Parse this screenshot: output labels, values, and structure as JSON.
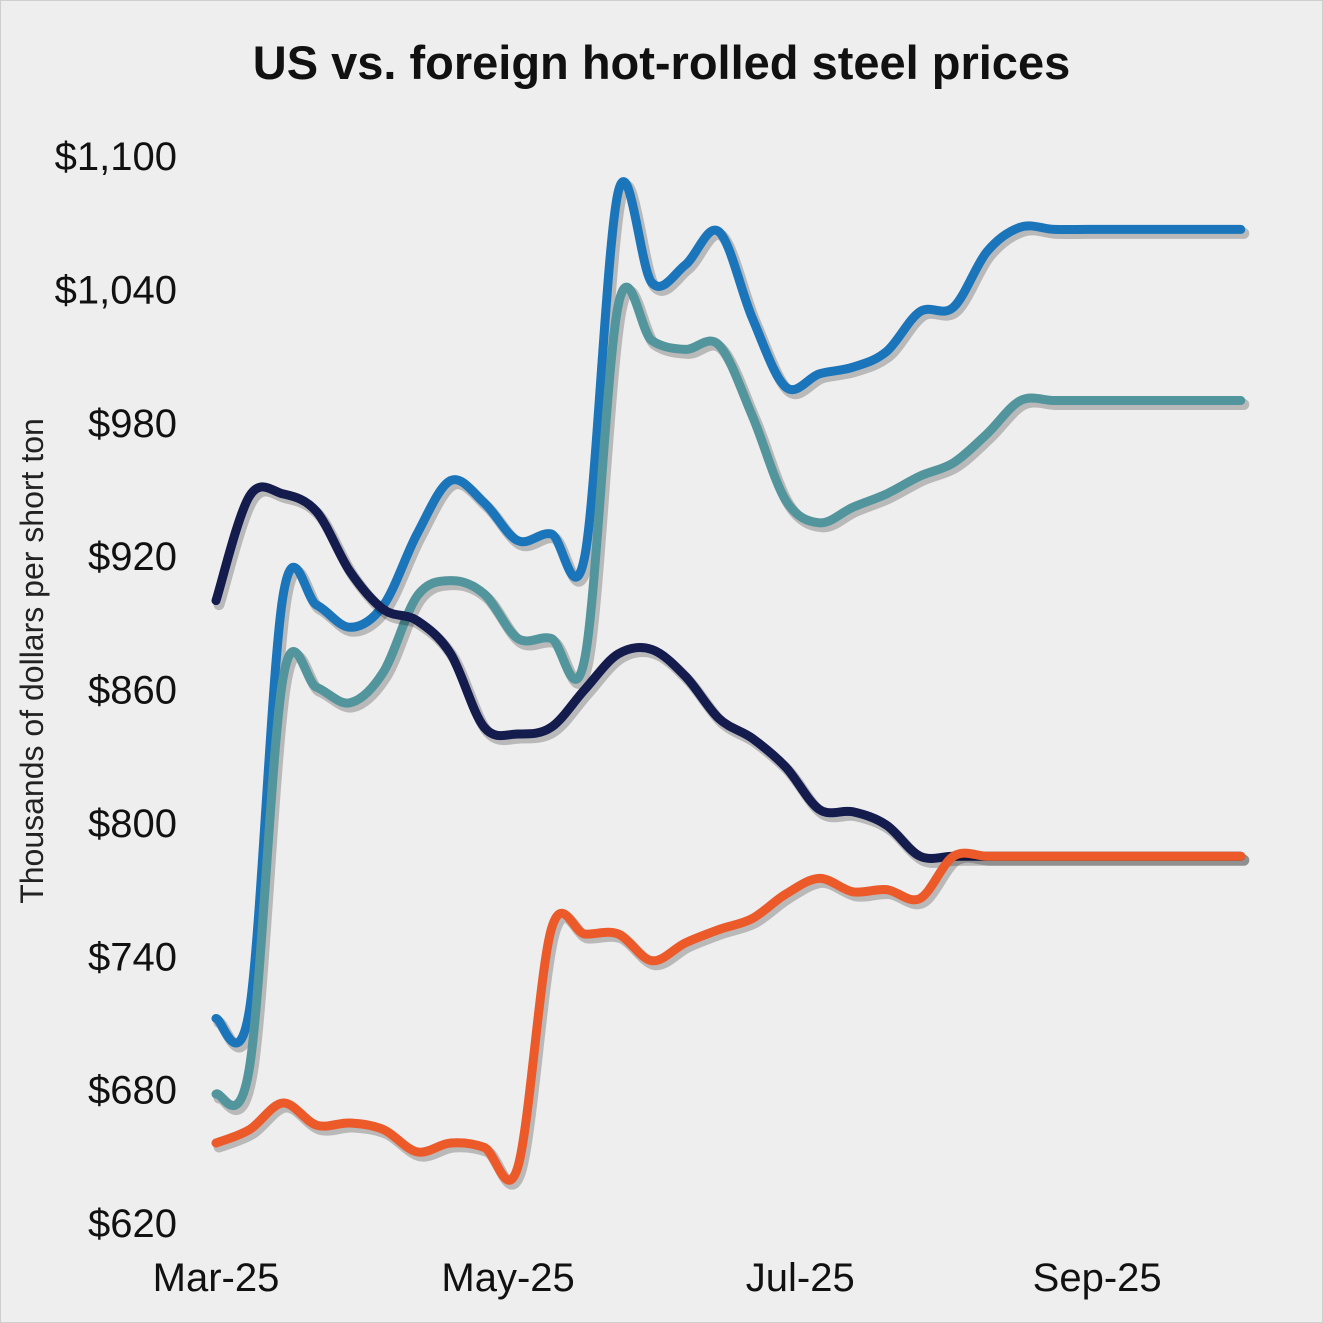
{
  "chart_data": {
    "type": "line",
    "title": "US vs. foreign hot-rolled steel prices",
    "xlabel": "",
    "ylabel": "Thousands of dollars per short ton",
    "ylim": [
      620,
      1100
    ],
    "yticks": [
      620,
      680,
      740,
      800,
      860,
      920,
      980,
      1040,
      1100
    ],
    "ytick_labels": [
      "$620",
      "$680",
      "$740",
      "$800",
      "$860",
      "$920",
      "$980",
      "$1,040",
      "$1,100"
    ],
    "xtick_labels": [
      "Mar-25",
      "May-25",
      "Jul-25",
      "Sep-25"
    ],
    "x": [
      "2025-03-01",
      "2025-03-08",
      "2025-03-15",
      "2025-03-22",
      "2025-03-29",
      "2025-04-05",
      "2025-04-12",
      "2025-04-19",
      "2025-04-26",
      "2025-05-03",
      "2025-05-10",
      "2025-05-17",
      "2025-05-24",
      "2025-05-31",
      "2025-06-07",
      "2025-06-14",
      "2025-06-21",
      "2025-06-28",
      "2025-07-05",
      "2025-07-12",
      "2025-07-19",
      "2025-07-26",
      "2025-08-02",
      "2025-08-09",
      "2025-08-16",
      "2025-08-23",
      "2025-08-30",
      "2025-09-06",
      "2025-09-13",
      "2025-09-20",
      "2025-09-27",
      "2025-10-01"
    ],
    "grid": false,
    "legend": "none",
    "series": [
      {
        "color": "#1b75bb",
        "values": [
          712,
          716,
          902,
          898,
          888,
          898,
          930,
          954,
          944,
          927,
          930,
          920,
          1084,
          1043,
          1051,
          1066,
          1027,
          996,
          1002,
          1005,
          1012,
          1030,
          1032,
          1057,
          1068,
          1067,
          1067,
          1067,
          1067,
          1067,
          1067,
          1067
        ]
      },
      {
        "color": "#53959c",
        "values": [
          678,
          690,
          865,
          861,
          854,
          868,
          902,
          909,
          903,
          883,
          883,
          874,
          1033,
          1017,
          1013,
          1015,
          983,
          945,
          935,
          942,
          948,
          956,
          962,
          975,
          990,
          990,
          990,
          990,
          990,
          990,
          990,
          990
        ]
      },
      {
        "color": "#141b4d",
        "values": [
          900,
          947,
          948,
          940,
          913,
          896,
          891,
          876,
          843,
          840,
          843,
          860,
          876,
          878,
          866,
          847,
          838,
          825,
          806,
          805,
          799,
          785,
          785,
          785,
          785,
          785,
          785,
          785,
          785,
          785,
          785,
          785
        ]
      },
      {
        "color": "#ec5a29",
        "values": [
          656,
          662,
          674,
          664,
          665,
          662,
          652,
          656,
          654,
          645,
          752,
          750,
          750,
          738,
          746,
          752,
          757,
          768,
          775,
          769,
          770,
          766,
          785,
          785,
          785,
          785,
          785,
          785,
          785,
          785,
          785,
          785
        ]
      }
    ]
  }
}
